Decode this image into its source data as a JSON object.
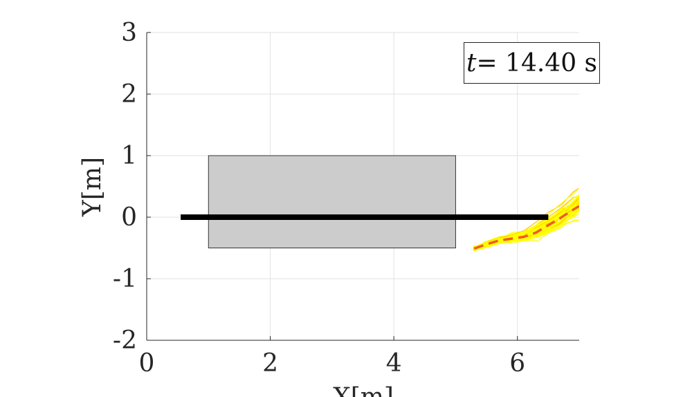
{
  "chart_data": {
    "type": "line",
    "xlabel": "X[m]",
    "ylabel": "Y[m]",
    "xlim": [
      0,
      7
    ],
    "ylim": [
      -2,
      3
    ],
    "xticks": [
      0,
      2,
      4,
      6
    ],
    "yticks": [
      -2,
      -1,
      0,
      1,
      2,
      3
    ],
    "grid": true,
    "annotation": {
      "var": "t",
      "text": "= 14.40 s"
    },
    "obstacle": {
      "x": [
        1,
        5
      ],
      "y": [
        -0.5,
        1
      ],
      "color": "#cccccc"
    },
    "reference_line": {
      "x": [
        0.55,
        6.5
      ],
      "y": [
        0,
        0
      ],
      "color": "#000000"
    },
    "predicted_path": {
      "color": "#f05a28",
      "x": [
        5.3,
        5.5,
        5.7,
        5.9,
        6.1,
        6.3,
        6.5,
        6.7,
        6.9,
        7.0
      ],
      "y": [
        -0.51,
        -0.44,
        -0.38,
        -0.35,
        -0.32,
        -0.25,
        -0.13,
        -0.01,
        0.12,
        0.18
      ]
    },
    "sampled_paths_color": "#ffff00"
  }
}
